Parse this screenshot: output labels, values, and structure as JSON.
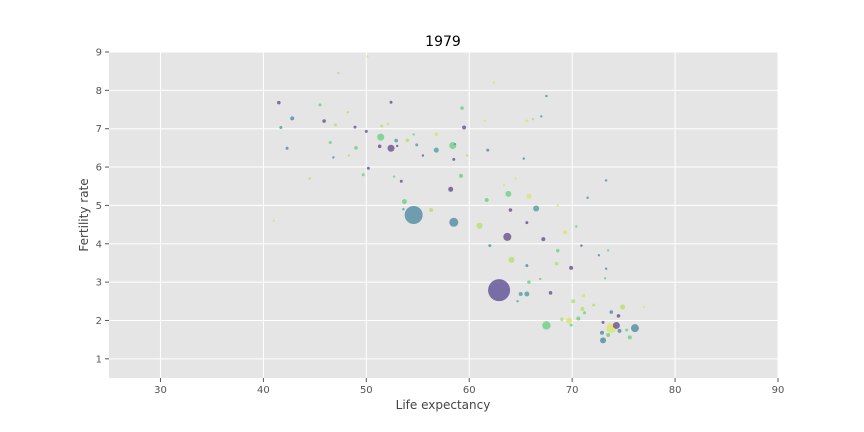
{
  "chart_data": {
    "type": "scatter",
    "title": "1979",
    "xlabel": "Life expectancy",
    "ylabel": "Fertility rate",
    "xlim": [
      25,
      90
    ],
    "ylim": [
      0.5,
      9
    ],
    "xticks": [
      "30",
      "40",
      "50",
      "60",
      "70",
      "80",
      "90"
    ],
    "yticks": [
      "1",
      "2",
      "3",
      "4",
      "5",
      "6",
      "7",
      "8",
      "9"
    ],
    "grid": true,
    "background": "#e5e5e5",
    "grid_color": "#ffffff",
    "colormap": "viridis",
    "points": [
      {
        "x": 62.9,
        "y": 2.79,
        "s": 11,
        "c": "#5d4f93"
      },
      {
        "x": 54.6,
        "y": 4.75,
        "s": 9,
        "c": "#4f8ba0"
      },
      {
        "x": 58.5,
        "y": 4.56,
        "s": 4.5,
        "c": "#4f8ba0"
      },
      {
        "x": 63.7,
        "y": 4.18,
        "s": 4,
        "c": "#6b4f8a"
      },
      {
        "x": 67.5,
        "y": 1.87,
        "s": 4.2,
        "c": "#6ccf83"
      },
      {
        "x": 76.1,
        "y": 1.8,
        "s": 4,
        "c": "#4f8ba0"
      },
      {
        "x": 51.4,
        "y": 6.78,
        "s": 3.5,
        "c": "#6ccf83"
      },
      {
        "x": 52.4,
        "y": 6.49,
        "s": 3.5,
        "c": "#6b4f8a"
      },
      {
        "x": 58.4,
        "y": 6.56,
        "s": 3.5,
        "c": "#6ccf83"
      },
      {
        "x": 66.5,
        "y": 4.92,
        "s": 3,
        "c": "#4f9fa0"
      },
      {
        "x": 73.8,
        "y": 1.8,
        "s": 5,
        "c": "#d9e36a"
      },
      {
        "x": 74.3,
        "y": 1.87,
        "s": 3.5,
        "c": "#6b4f8a"
      },
      {
        "x": 73.0,
        "y": 1.48,
        "s": 3,
        "c": "#4f8ba0"
      },
      {
        "x": 64.1,
        "y": 3.58,
        "s": 3,
        "c": "#b6de6a"
      },
      {
        "x": 61.0,
        "y": 4.47,
        "s": 3,
        "c": "#b6de6a"
      },
      {
        "x": 63.8,
        "y": 5.3,
        "s": 3,
        "c": "#6ccf83"
      },
      {
        "x": 53.7,
        "y": 5.1,
        "s": 2.5,
        "c": "#6ccf83"
      },
      {
        "x": 56.8,
        "y": 6.44,
        "s": 2.5,
        "c": "#4f9fa0"
      },
      {
        "x": 58.2,
        "y": 5.42,
        "s": 2.5,
        "c": "#6b4f8a"
      },
      {
        "x": 65.8,
        "y": 5.24,
        "s": 2.5,
        "c": "#d9e36a"
      },
      {
        "x": 65.6,
        "y": 2.69,
        "s": 2.5,
        "c": "#4f9fa0"
      },
      {
        "x": 65.0,
        "y": 2.69,
        "s": 2,
        "c": "#4f9fa0"
      },
      {
        "x": 67.2,
        "y": 4.12,
        "s": 2,
        "c": "#6b4f8a"
      },
      {
        "x": 69.9,
        "y": 3.37,
        "s": 2,
        "c": "#6b4f8a"
      },
      {
        "x": 69.3,
        "y": 4.3,
        "s": 2,
        "c": "#d9e36a"
      },
      {
        "x": 69.7,
        "y": 2.0,
        "s": 3,
        "c": "#d9e36a"
      },
      {
        "x": 70.1,
        "y": 2.5,
        "s": 2,
        "c": "#b6de6a"
      },
      {
        "x": 71.0,
        "y": 2.3,
        "s": 2,
        "c": "#b6de6a"
      },
      {
        "x": 70.6,
        "y": 2.05,
        "s": 2,
        "c": "#6ccf83"
      },
      {
        "x": 71.1,
        "y": 2.65,
        "s": 1.8,
        "c": "#d9e36a"
      },
      {
        "x": 72.9,
        "y": 1.68,
        "s": 2,
        "c": "#4f8ba0"
      },
      {
        "x": 73.5,
        "y": 1.62,
        "s": 2,
        "c": "#6ccf83"
      },
      {
        "x": 74.6,
        "y": 1.73,
        "s": 2,
        "c": "#4f8ba0"
      },
      {
        "x": 74.9,
        "y": 2.35,
        "s": 2.5,
        "c": "#b6de6a"
      },
      {
        "x": 75.6,
        "y": 1.56,
        "s": 2,
        "c": "#6ccf83"
      },
      {
        "x": 73.8,
        "y": 2.22,
        "s": 1.8,
        "c": "#4f8ba0"
      },
      {
        "x": 74.5,
        "y": 2.12,
        "s": 1.8,
        "c": "#6b4f8a"
      },
      {
        "x": 69.0,
        "y": 2.03,
        "s": 1.8,
        "c": "#b6de6a"
      },
      {
        "x": 67.9,
        "y": 2.72,
        "s": 1.8,
        "c": "#6b4f8a"
      },
      {
        "x": 68.5,
        "y": 3.48,
        "s": 1.8,
        "c": "#b6de6a"
      },
      {
        "x": 68.6,
        "y": 3.82,
        "s": 1.8,
        "c": "#6ccf83"
      },
      {
        "x": 65.6,
        "y": 3.43,
        "s": 1.5,
        "c": "#4f8ba0"
      },
      {
        "x": 65.8,
        "y": 3.0,
        "s": 1.8,
        "c": "#6ccf83"
      },
      {
        "x": 62.0,
        "y": 3.95,
        "s": 1.5,
        "c": "#4f9fa0"
      },
      {
        "x": 65.6,
        "y": 4.55,
        "s": 1.5,
        "c": "#6b4f8a"
      },
      {
        "x": 64.0,
        "y": 4.88,
        "s": 1.8,
        "c": "#6b4f8a"
      },
      {
        "x": 61.7,
        "y": 5.14,
        "s": 2,
        "c": "#6ccf83"
      },
      {
        "x": 59.2,
        "y": 5.77,
        "s": 2,
        "c": "#6ccf83"
      },
      {
        "x": 56.3,
        "y": 4.88,
        "s": 2,
        "c": "#b6de6a"
      },
      {
        "x": 53.4,
        "y": 5.63,
        "s": 1.5,
        "c": "#6b4f8a"
      },
      {
        "x": 50.2,
        "y": 5.97,
        "s": 1.5,
        "c": "#6b4f8a"
      },
      {
        "x": 49.7,
        "y": 5.8,
        "s": 1.5,
        "c": "#6ccf83"
      },
      {
        "x": 49.0,
        "y": 6.5,
        "s": 1.8,
        "c": "#6ccf83"
      },
      {
        "x": 50.0,
        "y": 6.93,
        "s": 1.5,
        "c": "#6b4f8a"
      },
      {
        "x": 48.9,
        "y": 7.04,
        "s": 1.5,
        "c": "#6b4f8a"
      },
      {
        "x": 47.0,
        "y": 7.1,
        "s": 1.5,
        "c": "#b6de6a"
      },
      {
        "x": 45.9,
        "y": 7.2,
        "s": 1.8,
        "c": "#6b4f8a"
      },
      {
        "x": 45.5,
        "y": 7.62,
        "s": 1.5,
        "c": "#6ccf83"
      },
      {
        "x": 42.8,
        "y": 7.27,
        "s": 2,
        "c": "#4f8ba0"
      },
      {
        "x": 41.5,
        "y": 7.68,
        "s": 1.8,
        "c": "#6b4f8a"
      },
      {
        "x": 41.7,
        "y": 7.03,
        "s": 1.5,
        "c": "#4f9fa0"
      },
      {
        "x": 42.3,
        "y": 6.49,
        "s": 1.5,
        "c": "#4f8ba0"
      },
      {
        "x": 46.5,
        "y": 6.64,
        "s": 1.5,
        "c": "#6ccf83"
      },
      {
        "x": 46.8,
        "y": 6.25,
        "s": 1.2,
        "c": "#4f8ba0"
      },
      {
        "x": 48.2,
        "y": 7.43,
        "s": 1.2,
        "c": "#b6de6a"
      },
      {
        "x": 47.3,
        "y": 8.45,
        "s": 1.2,
        "c": "#b6de6a"
      },
      {
        "x": 50.1,
        "y": 8.88,
        "s": 1.2,
        "c": "#d9e36a"
      },
      {
        "x": 52.4,
        "y": 7.69,
        "s": 1.5,
        "c": "#6b4f8a"
      },
      {
        "x": 51.5,
        "y": 7.07,
        "s": 1.5,
        "c": "#b6de6a"
      },
      {
        "x": 52.1,
        "y": 7.12,
        "s": 1.5,
        "c": "#d9e36a"
      },
      {
        "x": 51.3,
        "y": 6.54,
        "s": 1.8,
        "c": "#6b4f8a"
      },
      {
        "x": 52.9,
        "y": 6.69,
        "s": 1.8,
        "c": "#4f9fa0"
      },
      {
        "x": 54.0,
        "y": 6.7,
        "s": 1.8,
        "c": "#b6de6a"
      },
      {
        "x": 54.9,
        "y": 6.58,
        "s": 1.5,
        "c": "#4f9fa0"
      },
      {
        "x": 56.8,
        "y": 6.85,
        "s": 1.8,
        "c": "#d9e36a"
      },
      {
        "x": 59.5,
        "y": 7.03,
        "s": 2,
        "c": "#6b4f8a"
      },
      {
        "x": 59.3,
        "y": 7.54,
        "s": 1.8,
        "c": "#6ccf83"
      },
      {
        "x": 58.5,
        "y": 6.2,
        "s": 1.5,
        "c": "#6b4f8a"
      },
      {
        "x": 55.5,
        "y": 6.3,
        "s": 1.2,
        "c": "#6b4f8a"
      },
      {
        "x": 53.0,
        "y": 6.55,
        "s": 1.2,
        "c": "#6b4f8a"
      },
      {
        "x": 61.8,
        "y": 6.44,
        "s": 1.5,
        "c": "#4f8ba0"
      },
      {
        "x": 61.5,
        "y": 7.2,
        "s": 1.2,
        "c": "#d9e36a"
      },
      {
        "x": 62.4,
        "y": 8.2,
        "s": 1.2,
        "c": "#d9e36a"
      },
      {
        "x": 65.6,
        "y": 7.2,
        "s": 1.5,
        "c": "#d9e36a"
      },
      {
        "x": 66.2,
        "y": 7.25,
        "s": 1.2,
        "c": "#b6de6a"
      },
      {
        "x": 67.0,
        "y": 7.32,
        "s": 1.2,
        "c": "#4f9fa0"
      },
      {
        "x": 67.5,
        "y": 7.85,
        "s": 1.2,
        "c": "#4f8ba0"
      },
      {
        "x": 65.3,
        "y": 6.22,
        "s": 1.2,
        "c": "#4f8ba0"
      },
      {
        "x": 63.4,
        "y": 5.52,
        "s": 1.2,
        "c": "#d9e36a"
      },
      {
        "x": 64.5,
        "y": 5.7,
        "s": 1.2,
        "c": "#d9e36a"
      },
      {
        "x": 68.6,
        "y": 5.0,
        "s": 1.2,
        "c": "#d9e36a"
      },
      {
        "x": 71.5,
        "y": 5.2,
        "s": 1.2,
        "c": "#4f8ba0"
      },
      {
        "x": 73.3,
        "y": 5.65,
        "s": 1.2,
        "c": "#4f8ba0"
      },
      {
        "x": 70.4,
        "y": 4.45,
        "s": 1.2,
        "c": "#6ccf83"
      },
      {
        "x": 70.9,
        "y": 3.95,
        "s": 1.2,
        "c": "#6b4f8a"
      },
      {
        "x": 72.6,
        "y": 3.7,
        "s": 1.2,
        "c": "#4f8ba0"
      },
      {
        "x": 73.5,
        "y": 3.83,
        "s": 1.2,
        "c": "#6ccf83"
      },
      {
        "x": 73.3,
        "y": 3.35,
        "s": 1.2,
        "c": "#4f8ba0"
      },
      {
        "x": 73.2,
        "y": 3.1,
        "s": 1.2,
        "c": "#6ccf83"
      },
      {
        "x": 71.2,
        "y": 2.2,
        "s": 1.5,
        "c": "#6ccf83"
      },
      {
        "x": 72.1,
        "y": 2.4,
        "s": 1.5,
        "c": "#b6de6a"
      },
      {
        "x": 73.0,
        "y": 1.95,
        "s": 1.5,
        "c": "#6b4f8a"
      },
      {
        "x": 75.3,
        "y": 1.75,
        "s": 1.5,
        "c": "#6ccf83"
      },
      {
        "x": 77.0,
        "y": 2.35,
        "s": 1.2,
        "c": "#d9e36a"
      },
      {
        "x": 69.9,
        "y": 1.88,
        "s": 1.5,
        "c": "#6ccf83"
      },
      {
        "x": 66.9,
        "y": 3.08,
        "s": 1.2,
        "c": "#6ccf83"
      },
      {
        "x": 64.7,
        "y": 2.5,
        "s": 1.2,
        "c": "#4f9fa0"
      },
      {
        "x": 53.6,
        "y": 4.9,
        "s": 1.2,
        "c": "#4f9fa0"
      },
      {
        "x": 44.5,
        "y": 5.7,
        "s": 1.2,
        "c": "#b6de6a"
      },
      {
        "x": 41.0,
        "y": 4.6,
        "s": 1.2,
        "c": "#d9e36a"
      },
      {
        "x": 54.6,
        "y": 6.85,
        "s": 1.2,
        "c": "#6ccf83"
      },
      {
        "x": 48.3,
        "y": 6.3,
        "s": 1.2,
        "c": "#b6de6a"
      },
      {
        "x": 58.6,
        "y": 6.6,
        "s": 1.2,
        "c": "#4f9fa0"
      },
      {
        "x": 52.7,
        "y": 5.75,
        "s": 1.2,
        "c": "#6ccf83"
      },
      {
        "x": 59.8,
        "y": 6.3,
        "s": 1.2,
        "c": "#b6de6a"
      }
    ]
  }
}
